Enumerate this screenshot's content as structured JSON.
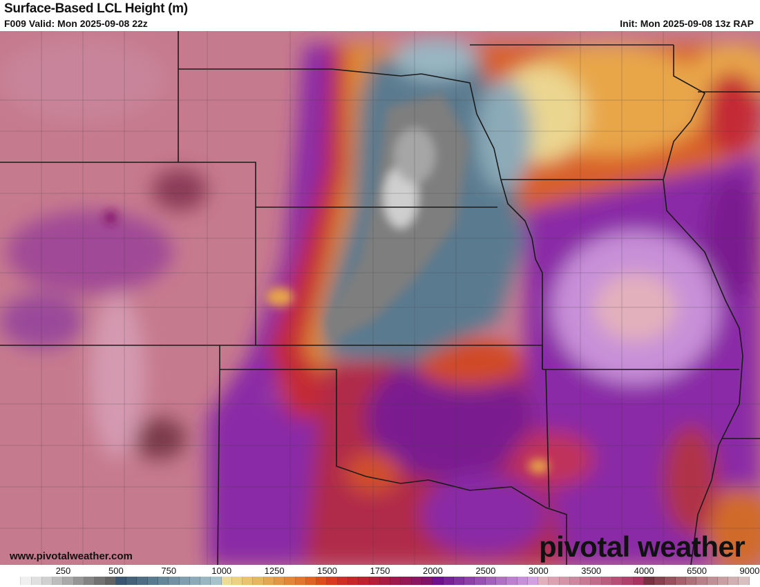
{
  "header": {
    "title": "Surface-Based LCL Height (m)",
    "valid": "F009 Valid: Mon 2025-09-08 22z",
    "init": "Init: Mon 2025-09-08 13z RAP"
  },
  "footer": {
    "website": "www.pivotalweather.com",
    "brand": "pivotal weather"
  },
  "colorbar": {
    "unit": "m",
    "tick_labels": [
      "250",
      "500",
      "750",
      "1000",
      "1250",
      "1500",
      "1750",
      "2000",
      "2500",
      "3000",
      "3500",
      "4000",
      "6500",
      "9000"
    ],
    "colors": [
      "#ffffff",
      "#f0f0f0",
      "#e0e0e0",
      "#d0d0d0",
      "#bdbdbd",
      "#aaaaaa",
      "#969696",
      "#848484",
      "#727272",
      "#636363",
      "#3a5670",
      "#44627a",
      "#4f6e85",
      "#5a7a8f",
      "#66869a",
      "#7292a4",
      "#7f9eae",
      "#8caab8",
      "#99b6c2",
      "#a6c2cb",
      "#ebde94",
      "#ead27f",
      "#e9c46c",
      "#e8b65d",
      "#e6a64e",
      "#e59642",
      "#e48636",
      "#e3762a",
      "#e0631f",
      "#dc4e18",
      "#d43c1c",
      "#cc3022",
      "#c42828",
      "#bc2230",
      "#b41e38",
      "#aa1a42",
      "#a0184c",
      "#961656",
      "#8c1460",
      "#84126a",
      "#701090",
      "#7a2099",
      "#8430a2",
      "#8e40ab",
      "#9850b4",
      "#a460bd",
      "#b070c6",
      "#bc80cf",
      "#c890d8",
      "#d4a0e1",
      "#e2b0bc",
      "#dca2b2",
      "#d694a8",
      "#d0869e",
      "#ca7894",
      "#c46a8a",
      "#be5c80",
      "#b84e76",
      "#b2406c",
      "#ac3262",
      "#7a3040",
      "#8a404e",
      "#9a505e",
      "#a8606c",
      "#b0707a",
      "#b88088",
      "#c09096",
      "#c8a0a4",
      "#d0b0b2",
      "#d8c0c0"
    ]
  },
  "map": {
    "field": "Surface-Based LCL Height",
    "palette": {
      "west_background": "#c67a8e",
      "purple": "#8a2aa6",
      "red": "#c42c36",
      "orange": "#e08a30",
      "yellow": "#e8c46c",
      "bluegray": "#5a7a8f",
      "gray": "#8a8a8a",
      "light_pink": "#e2b0bc"
    }
  }
}
